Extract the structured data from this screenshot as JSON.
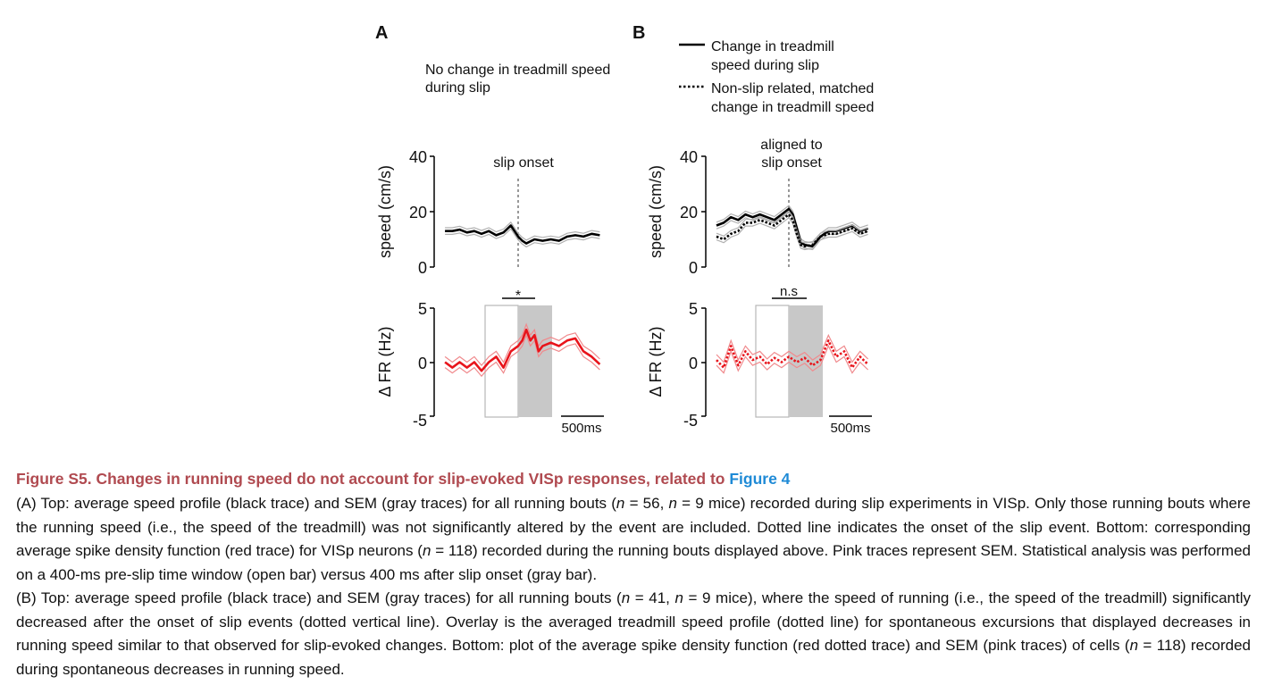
{
  "panel_labels": [
    "A",
    "B"
  ],
  "panel_a": {
    "heading_lines": [
      "No change in treadmill speed",
      "during slip"
    ],
    "event_label": "slip onset",
    "significance": "*"
  },
  "panel_b": {
    "legend": [
      {
        "style": "solid",
        "lines": [
          "Change in treadmill",
          "speed during slip"
        ]
      },
      {
        "style": "dotted",
        "lines": [
          "Non-slip related, matched",
          "change in treadmill speed"
        ]
      }
    ],
    "event_label_lines": [
      "aligned to",
      "slip onset"
    ],
    "significance": "n.s"
  },
  "axes": {
    "speed_ylabel": "speed (cm/s)",
    "speed_ticks": [
      "40",
      "20",
      "0"
    ],
    "fr_ylabel": "Δ FR (Hz)",
    "fr_ticks": [
      "5",
      "0",
      "-5"
    ],
    "scalebar_label": "500ms"
  },
  "colors": {
    "speed": "#000000",
    "speed_sem": "#b0b0b0",
    "fr": "#e8141b",
    "fr_sem": "#f08a8d",
    "post_bar": "#c8c8c8",
    "pre_bar": "#b8b8b8"
  },
  "chart_data": [
    {
      "type": "line",
      "panel": "A-top",
      "ylabel": "speed (cm/s)",
      "ylim": [
        0,
        40
      ],
      "event_x": 0,
      "xlim": [
        -1.05,
        1.05
      ],
      "series": [
        {
          "style": "solid",
          "x": [
            -1.0,
            -0.9,
            -0.8,
            -0.7,
            -0.6,
            -0.5,
            -0.4,
            -0.3,
            -0.2,
            -0.1,
            -0.05,
            0.0,
            0.05,
            0.1,
            0.2,
            0.3,
            0.4,
            0.5,
            0.6,
            0.7,
            0.8,
            0.9,
            1.0
          ],
          "values": [
            13,
            13,
            13.5,
            12.5,
            13,
            12,
            13,
            11.5,
            12.5,
            15,
            13,
            11,
            9.5,
            8.5,
            10,
            9.5,
            10,
            9.5,
            11,
            11.5,
            11,
            12,
            11.5
          ]
        }
      ]
    },
    {
      "type": "line",
      "panel": "B-top",
      "ylabel": "speed (cm/s)",
      "ylim": [
        0,
        40
      ],
      "event_x": 0,
      "xlim": [
        -1.05,
        1.05
      ],
      "series": [
        {
          "style": "solid",
          "x": [
            -1.0,
            -0.9,
            -0.8,
            -0.7,
            -0.6,
            -0.5,
            -0.4,
            -0.3,
            -0.2,
            -0.1,
            0.0,
            0.05,
            0.1,
            0.15,
            0.2,
            0.3,
            0.4,
            0.5,
            0.6,
            0.7,
            0.8,
            0.9,
            1.0
          ],
          "values": [
            15,
            16,
            18,
            17,
            19,
            18,
            19,
            18,
            17,
            19,
            21,
            19,
            14,
            9,
            8,
            7.5,
            11,
            13,
            13,
            14,
            15,
            13,
            14
          ]
        },
        {
          "style": "dotted",
          "x": [
            -1.0,
            -0.9,
            -0.8,
            -0.7,
            -0.6,
            -0.5,
            -0.4,
            -0.3,
            -0.2,
            -0.1,
            0.0,
            0.05,
            0.1,
            0.15,
            0.2,
            0.3,
            0.4,
            0.5,
            0.6,
            0.7,
            0.8,
            0.9,
            1.0
          ],
          "values": [
            11,
            10,
            12,
            13,
            16,
            16,
            17,
            16,
            15,
            17,
            19,
            17,
            12,
            8,
            7.5,
            8,
            11,
            12,
            12,
            13,
            14,
            12,
            13
          ]
        }
      ]
    },
    {
      "type": "line",
      "panel": "A-bottom",
      "ylabel": "Δ FR (Hz)",
      "ylim": [
        -5,
        5
      ],
      "xlim": [
        -1.05,
        1.05
      ],
      "pre_window": [
        -0.4,
        0
      ],
      "post_window": [
        0,
        0.4
      ],
      "series": [
        {
          "style": "solid",
          "x": [
            -1.0,
            -0.9,
            -0.8,
            -0.7,
            -0.6,
            -0.5,
            -0.4,
            -0.3,
            -0.2,
            -0.1,
            0.0,
            0.05,
            0.1,
            0.15,
            0.2,
            0.25,
            0.3,
            0.4,
            0.5,
            0.6,
            0.7,
            0.8,
            0.9,
            1.0
          ],
          "values": [
            0,
            -0.5,
            0,
            -0.5,
            0,
            -0.8,
            0,
            0.5,
            -0.5,
            1,
            1.5,
            2,
            3,
            2,
            2.5,
            1,
            1.5,
            1.8,
            1.5,
            2,
            2.2,
            1,
            0.5,
            -0.2
          ]
        }
      ]
    },
    {
      "type": "line",
      "panel": "B-bottom",
      "ylabel": "Δ FR (Hz)",
      "ylim": [
        -5,
        5
      ],
      "xlim": [
        -1.05,
        1.05
      ],
      "pre_window": [
        -0.4,
        0
      ],
      "post_window": [
        0,
        0.4
      ],
      "series": [
        {
          "style": "dotted",
          "x": [
            -1.0,
            -0.9,
            -0.8,
            -0.7,
            -0.6,
            -0.5,
            -0.4,
            -0.3,
            -0.2,
            -0.1,
            0.0,
            0.1,
            0.2,
            0.3,
            0.4,
            0.5,
            0.6,
            0.7,
            0.8,
            0.9,
            1.0
          ],
          "values": [
            0.2,
            -0.5,
            1.5,
            -0.3,
            1,
            0.2,
            0.5,
            -0.2,
            0.4,
            0,
            0.5,
            0,
            0.4,
            -0.3,
            0.2,
            2,
            0.5,
            1,
            -0.5,
            0.5,
            -0.2
          ]
        }
      ]
    }
  ],
  "caption": {
    "title": "Figure S5.  Changes in running speed do not account for slip-evoked VISp responses, related to ",
    "title_link": "Figure 4",
    "paragraphs": [
      "(A) Top: average speed profile (black trace) and SEM (gray traces) for all running bouts (n = 56, n = 9 mice) recorded during slip experiments in VISp. Only those running bouts where the running speed (i.e., the speed of the treadmill) was not significantly altered by the event are included. Dotted line indicates the onset of the slip event. Bottom: corresponding average spike density function (red trace) for VISp neurons (n = 118) recorded during the running bouts displayed above. Pink traces represent SEM. Statistical analysis was performed on a 400-ms pre-slip time window (open bar) versus 400 ms after slip onset (gray bar).",
      "(B) Top: average speed profile (black trace) and SEM (gray traces) for all running bouts (n = 41, n = 9 mice), where the speed of running (i.e., the speed of the treadmill) significantly decreased after the onset of slip events (dotted vertical line). Overlay is the averaged treadmill speed profile (dotted line) for spontaneous excursions that displayed decreases in running speed similar to that observed for slip-evoked changes. Bottom: plot of the average spike density function (red dotted trace) and SEM (pink traces) of cells (n = 118) recorded during spontaneous decreases in running speed."
    ]
  }
}
